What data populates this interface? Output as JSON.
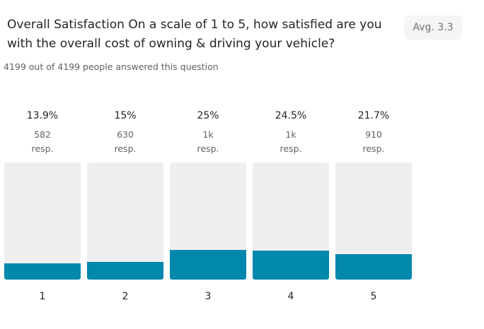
{
  "question": {
    "title": "Overall Satisfaction On a scale of 1 to 5, how satisfied are you with the overall cost of owning & driving your vehicle?",
    "avg": "Avg. 3.3",
    "answered": "4199 out of 4199 people answered this question"
  },
  "chart_data": {
    "type": "bar",
    "categories": [
      "1",
      "2",
      "3",
      "4",
      "5"
    ],
    "values": [
      13.9,
      15,
      25,
      24.5,
      21.7
    ],
    "value_labels": [
      "13.9%",
      "15%",
      "25%",
      "24.5%",
      "21.7%"
    ],
    "responses": [
      "582",
      "630",
      "1k",
      "1k",
      "910"
    ],
    "response_unit": "resp.",
    "ylim": [
      0,
      100
    ],
    "grid": false,
    "colors": {
      "bar": "#0287ad",
      "track": "#efefef"
    }
  }
}
